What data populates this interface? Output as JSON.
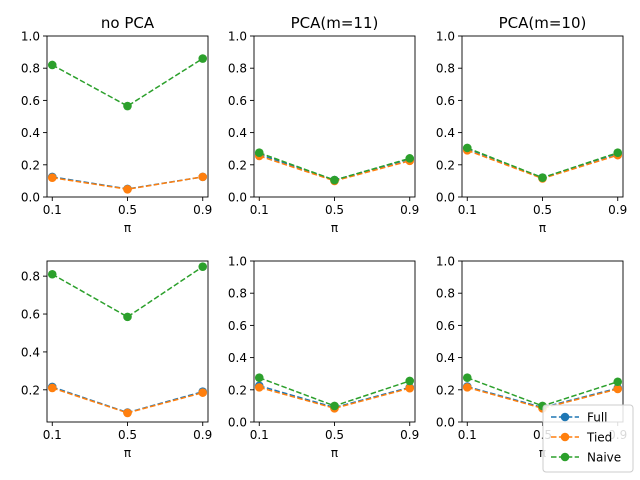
{
  "chart_data": [
    {
      "type": "line",
      "title": "no PCA",
      "xlabel": "π",
      "ylim": [
        0,
        1.0
      ],
      "x": [
        0.1,
        0.5,
        0.9
      ],
      "xticks": [
        "0.1",
        "0.5",
        "0.9"
      ],
      "yticks": [
        "0.0",
        "0.2",
        "0.4",
        "0.6",
        "0.8",
        "1.0"
      ],
      "series": [
        {
          "name": "Full",
          "values": [
            0.125,
            0.05,
            0.125
          ],
          "color": "#1f77b4"
        },
        {
          "name": "Tied",
          "values": [
            0.12,
            0.048,
            0.125
          ],
          "color": "#ff7f0e"
        },
        {
          "name": "Naive",
          "values": [
            0.82,
            0.565,
            0.86
          ],
          "color": "#2ca02c"
        }
      ]
    },
    {
      "type": "line",
      "title": "PCA(m=11)",
      "xlabel": "π",
      "ylim": [
        0,
        1.0
      ],
      "x": [
        0.1,
        0.5,
        0.9
      ],
      "xticks": [
        "0.1",
        "0.5",
        "0.9"
      ],
      "yticks": [
        "0.0",
        "0.2",
        "0.4",
        "0.6",
        "0.8",
        "1.0"
      ],
      "series": [
        {
          "name": "Full",
          "values": [
            0.265,
            0.105,
            0.235
          ],
          "color": "#1f77b4"
        },
        {
          "name": "Tied",
          "values": [
            0.255,
            0.1,
            0.225
          ],
          "color": "#ff7f0e"
        },
        {
          "name": "Naive",
          "values": [
            0.275,
            0.105,
            0.24
          ],
          "color": "#2ca02c"
        }
      ]
    },
    {
      "type": "line",
      "title": "PCA(m=10)",
      "xlabel": "π",
      "ylim": [
        0,
        1.0
      ],
      "x": [
        0.1,
        0.5,
        0.9
      ],
      "xticks": [
        "0.1",
        "0.5",
        "0.9"
      ],
      "yticks": [
        "0.0",
        "0.2",
        "0.4",
        "0.6",
        "0.8",
        "1.0"
      ],
      "series": [
        {
          "name": "Full",
          "values": [
            0.3,
            0.12,
            0.27
          ],
          "color": "#1f77b4"
        },
        {
          "name": "Tied",
          "values": [
            0.29,
            0.115,
            0.26
          ],
          "color": "#ff7f0e"
        },
        {
          "name": "Naive",
          "values": [
            0.305,
            0.12,
            0.275
          ],
          "color": "#2ca02c"
        }
      ]
    },
    {
      "type": "line",
      "title": "",
      "xlabel": "π",
      "ylim": [
        0.03,
        0.88
      ],
      "x": [
        0.1,
        0.5,
        0.9
      ],
      "xticks": [
        "0.1",
        "0.5",
        "0.9"
      ],
      "yticks": [
        "0.2",
        "0.4",
        "0.6",
        "0.8"
      ],
      "series": [
        {
          "name": "Full",
          "values": [
            0.215,
            0.08,
            0.19
          ],
          "color": "#1f77b4"
        },
        {
          "name": "Tied",
          "values": [
            0.21,
            0.078,
            0.185
          ],
          "color": "#ff7f0e"
        },
        {
          "name": "Naive",
          "values": [
            0.81,
            0.585,
            0.85
          ],
          "color": "#2ca02c"
        }
      ]
    },
    {
      "type": "line",
      "title": "",
      "xlabel": "π",
      "ylim": [
        0,
        1.0
      ],
      "x": [
        0.1,
        0.5,
        0.9
      ],
      "xticks": [
        "0.1",
        "0.5",
        "0.9"
      ],
      "yticks": [
        "0.0",
        "0.2",
        "0.4",
        "0.6",
        "0.8",
        "1.0"
      ],
      "series": [
        {
          "name": "Full",
          "values": [
            0.225,
            0.09,
            0.215
          ],
          "color": "#1f77b4"
        },
        {
          "name": "Tied",
          "values": [
            0.215,
            0.085,
            0.21
          ],
          "color": "#ff7f0e"
        },
        {
          "name": "Naive",
          "values": [
            0.275,
            0.1,
            0.255
          ],
          "color": "#2ca02c"
        }
      ]
    },
    {
      "type": "line",
      "title": "",
      "xlabel": "π",
      "ylim": [
        0,
        1.0
      ],
      "x": [
        0.1,
        0.5,
        0.9
      ],
      "xticks": [
        "0.1",
        "0.5",
        "0.9"
      ],
      "yticks": [
        "0.0",
        "0.2",
        "0.4",
        "0.6",
        "0.8",
        "1.0"
      ],
      "series": [
        {
          "name": "Full",
          "values": [
            0.22,
            0.09,
            0.21
          ],
          "color": "#1f77b4"
        },
        {
          "name": "Tied",
          "values": [
            0.215,
            0.085,
            0.205
          ],
          "color": "#ff7f0e"
        },
        {
          "name": "Naive",
          "values": [
            0.275,
            0.1,
            0.25
          ],
          "color": "#2ca02c"
        }
      ]
    }
  ],
  "legend": {
    "placement": "bottom-right",
    "entries": [
      {
        "label": "Full",
        "color": "#1f77b4"
      },
      {
        "label": "Tied",
        "color": "#ff7f0e"
      },
      {
        "label": "Naive",
        "color": "#2ca02c"
      }
    ]
  }
}
